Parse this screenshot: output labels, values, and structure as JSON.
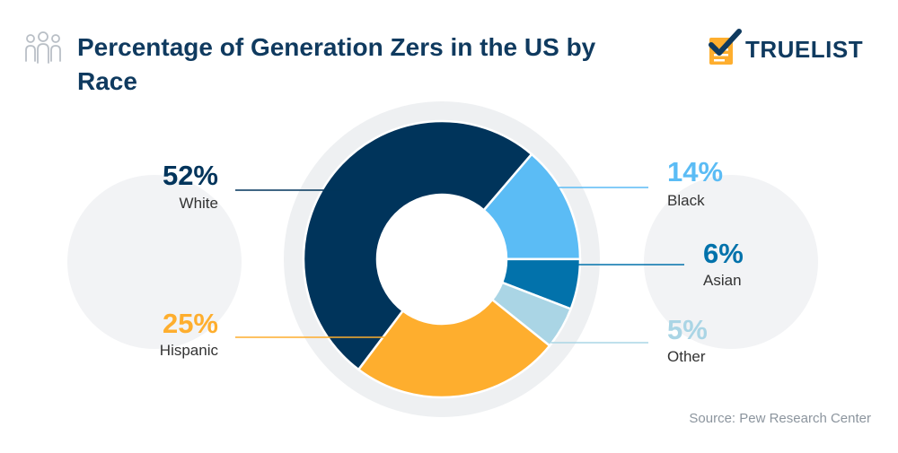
{
  "title": "Percentage of Generation Zers in the US by Race",
  "brand": {
    "name": "TRUELIST"
  },
  "source": "Source: Pew Research Center",
  "icons": {
    "title_icon": "people-group-icon",
    "logo_icon": "checklist-icon"
  },
  "colors": {
    "navy": "#0f3a5f",
    "white_slice": "#00345b",
    "hispanic": "#feae2e",
    "black": "#5bbcf5",
    "asian": "#0272ab",
    "other": "#aad5e5",
    "ring_bg": "#eef0f2",
    "bubble_bg": "#f2f3f5",
    "label_gray": "#333333"
  },
  "chart_data": {
    "type": "pie",
    "style": "donut",
    "title": "Percentage of Generation Zers in the US by Race",
    "unit": "%",
    "slices": [
      {
        "label": "White",
        "value": 52,
        "display": "52%",
        "color": "#00345b",
        "pct_color": "#00345b"
      },
      {
        "label": "Black",
        "value": 14,
        "display": "14%",
        "color": "#5bbcf5",
        "pct_color": "#5bbcf5"
      },
      {
        "label": "Asian",
        "value": 6,
        "display": "6%",
        "color": "#0272ab",
        "pct_color": "#0272ab"
      },
      {
        "label": "Other",
        "value": 5,
        "display": "5%",
        "color": "#aad5e5",
        "pct_color": "#aad5e5"
      },
      {
        "label": "Hispanic",
        "value": 25,
        "display": "25%",
        "color": "#feae2e",
        "pct_color": "#feae2e"
      }
    ]
  }
}
